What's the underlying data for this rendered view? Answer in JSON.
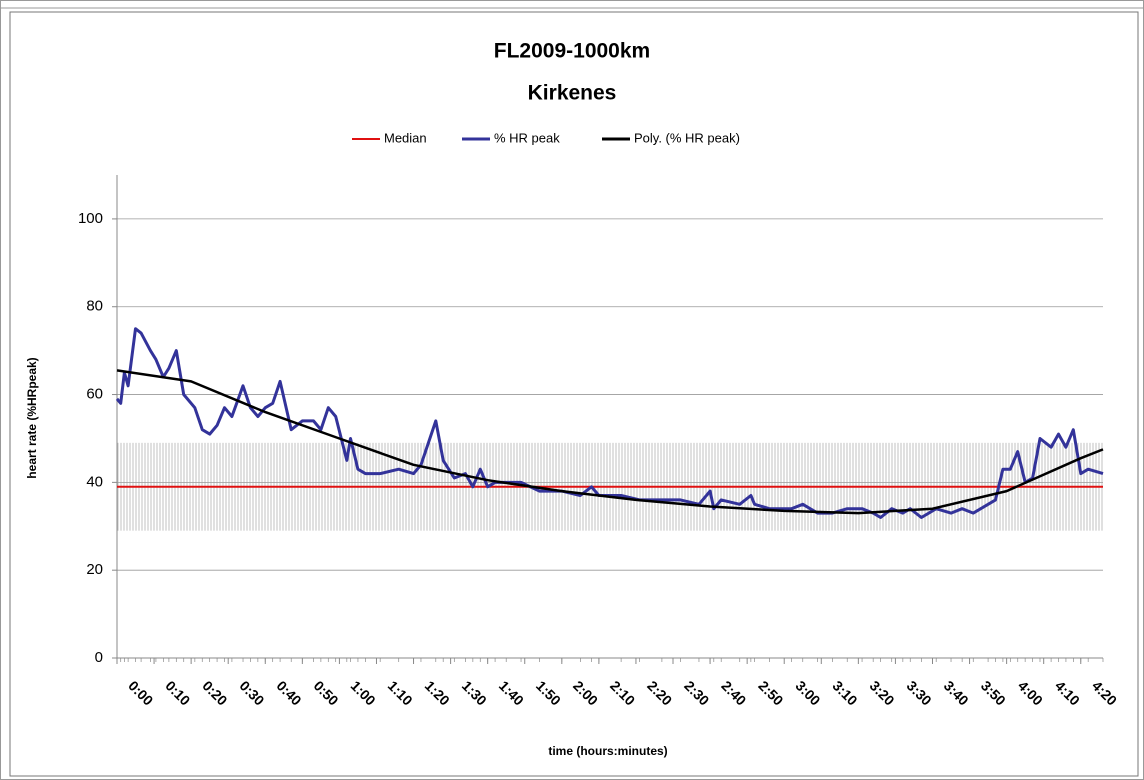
{
  "chart_data": {
    "type": "line",
    "title": "FL2009-1000km",
    "subtitle": "Kirkenes",
    "x_label": "time (hours:minutes)",
    "y_label": "heart rate (%HRpeak)",
    "xlim": [
      0,
      266
    ],
    "ylim": [
      0,
      110
    ],
    "yticks": [
      0,
      20,
      40,
      60,
      80,
      100
    ],
    "xticks": [
      {
        "value": 0,
        "label": "0:00"
      },
      {
        "value": 10,
        "label": "0:10"
      },
      {
        "value": 20,
        "label": "0:20"
      },
      {
        "value": 30,
        "label": "0:30"
      },
      {
        "value": 40,
        "label": "0:40"
      },
      {
        "value": 50,
        "label": "0:50"
      },
      {
        "value": 60,
        "label": "1:00"
      },
      {
        "value": 70,
        "label": "1:10"
      },
      {
        "value": 80,
        "label": "1:20"
      },
      {
        "value": 90,
        "label": "1:30"
      },
      {
        "value": 100,
        "label": "1:40"
      },
      {
        "value": 110,
        "label": "1:50"
      },
      {
        "value": 120,
        "label": "2:00"
      },
      {
        "value": 130,
        "label": "2:10"
      },
      {
        "value": 140,
        "label": "2:20"
      },
      {
        "value": 150,
        "label": "2:30"
      },
      {
        "value": 160,
        "label": "2:40"
      },
      {
        "value": 170,
        "label": "2:50"
      },
      {
        "value": 180,
        "label": "3:00"
      },
      {
        "value": 190,
        "label": "3:10"
      },
      {
        "value": 200,
        "label": "3:20"
      },
      {
        "value": 210,
        "label": "3:30"
      },
      {
        "value": 220,
        "label": "3:40"
      },
      {
        "value": 230,
        "label": "3:50"
      },
      {
        "value": 240,
        "label": "4:00"
      },
      {
        "value": 250,
        "label": "4:10"
      },
      {
        "value": 260,
        "label": "4:20"
      }
    ],
    "grid": true,
    "legend": "top",
    "band": {
      "low": 29,
      "high": 49,
      "color": "#b0b0b0"
    },
    "series": [
      {
        "name": "Median",
        "color": "#e01010",
        "style": "hline",
        "values": [
          39
        ]
      },
      {
        "name": "% HR peak",
        "color": "#33339a",
        "width": 3,
        "x": [
          0,
          1,
          2,
          3,
          5,
          6.5,
          9,
          10.5,
          12.5,
          14,
          16,
          18,
          21,
          23,
          25,
          27,
          29,
          31,
          34,
          36,
          38,
          40,
          42,
          44,
          47,
          50,
          53,
          55,
          57,
          59,
          62,
          63,
          65,
          67,
          71,
          76,
          80,
          82,
          86,
          88,
          91,
          94,
          96,
          98,
          100,
          102,
          105,
          109,
          114,
          120,
          125,
          128,
          130,
          136,
          141,
          147,
          152,
          157,
          160,
          161,
          163,
          168,
          171,
          172,
          176,
          182,
          185,
          189,
          193,
          197,
          201,
          204,
          206,
          209,
          212,
          214,
          217,
          221,
          225,
          228,
          231,
          235,
          237,
          239,
          241,
          243,
          245,
          247,
          249,
          252,
          254,
          256,
          258,
          260,
          262,
          266
        ],
        "values": [
          59,
          58,
          65,
          62,
          75,
          74,
          70,
          68,
          64,
          66,
          70,
          60,
          57,
          52,
          51,
          53,
          57,
          55,
          62,
          57,
          55,
          57,
          58,
          63,
          52,
          54,
          54,
          52,
          57,
          55,
          45,
          50,
          43,
          42,
          42,
          43,
          42,
          44,
          54,
          45,
          41,
          42,
          39,
          43,
          39,
          40,
          40,
          40,
          38,
          38,
          37,
          39,
          37,
          37,
          36,
          36,
          36,
          35,
          38,
          34,
          36,
          35,
          37,
          35,
          34,
          34,
          35,
          33,
          33,
          34,
          34,
          33,
          32,
          34,
          33,
          34,
          32,
          34,
          33,
          34,
          33,
          35,
          36,
          43,
          43,
          47,
          40,
          41,
          50,
          48,
          51,
          48,
          52,
          42,
          43,
          42
        ]
      },
      {
        "name": "Poly. (% HR peak)",
        "color": "#000000",
        "width": 2.5,
        "x": [
          0,
          20,
          40,
          60,
          80,
          100,
          120,
          140,
          160,
          180,
          200,
          220,
          240,
          260,
          266
        ],
        "values": [
          65.5,
          63,
          56,
          50,
          44,
          40.5,
          38,
          36,
          34.5,
          33.5,
          33,
          34,
          38,
          45.5,
          47.5
        ]
      }
    ]
  }
}
